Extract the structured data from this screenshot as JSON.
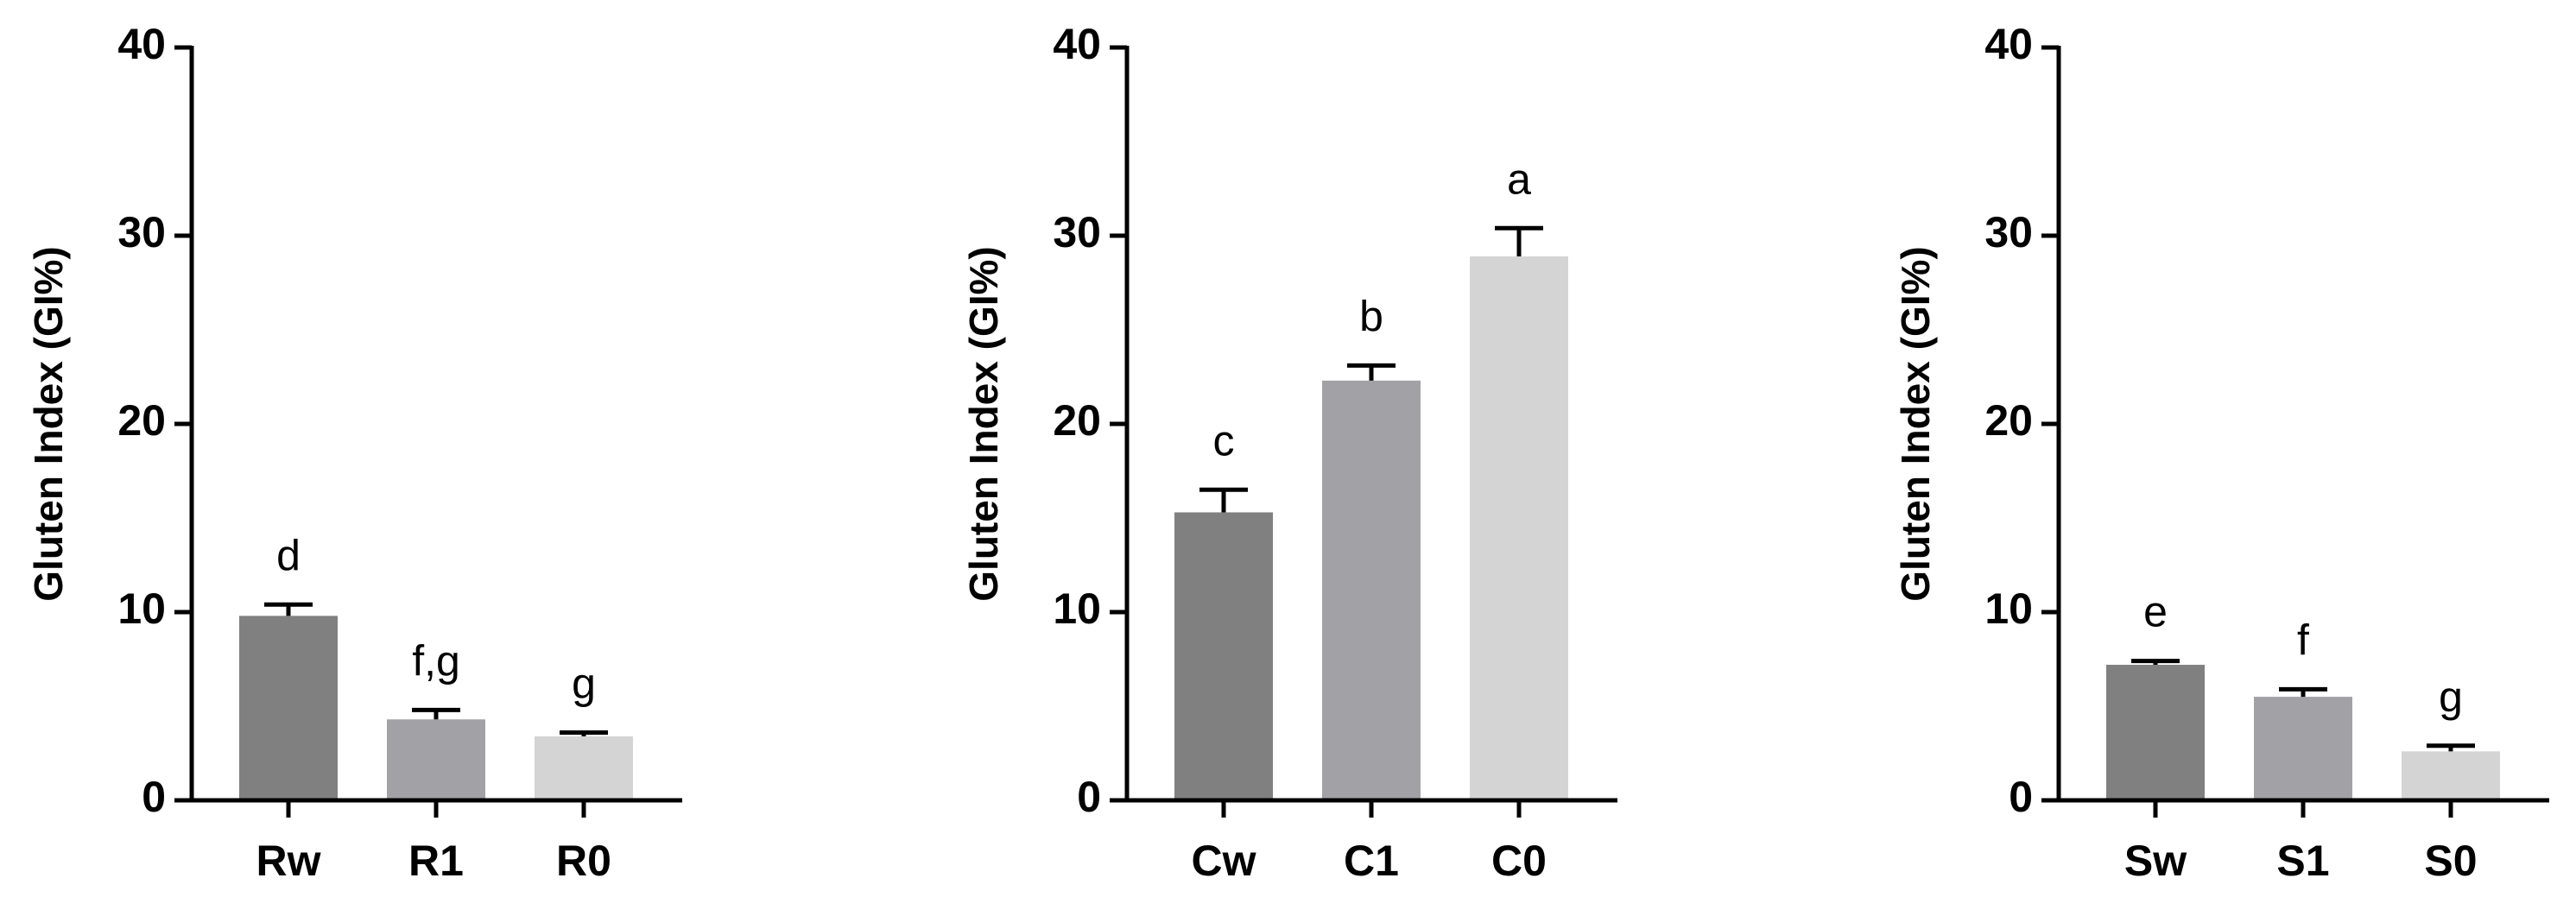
{
  "chart_data": [
    {
      "type": "bar",
      "y_label": "Gluten Index (GI%)",
      "categories": [
        "Rw",
        "R1",
        "R0"
      ],
      "values": [
        9.8,
        4.3,
        3.4
      ],
      "errors": [
        0.6,
        0.5,
        0.2
      ],
      "letters": [
        "d",
        "f,g",
        "g"
      ],
      "colors": [
        "#808080",
        "#a2a1a6",
        "#d4d4d4"
      ],
      "ylim": [
        0,
        40
      ],
      "yticks": [
        0,
        10,
        20,
        30,
        40
      ]
    },
    {
      "type": "bar",
      "y_label": "Gluten Index (GI%)",
      "categories": [
        "Cw",
        "C1",
        "C0"
      ],
      "values": [
        15.3,
        22.3,
        28.9
      ],
      "errors": [
        1.2,
        0.8,
        1.5
      ],
      "letters": [
        "c",
        "b",
        "a"
      ],
      "colors": [
        "#808080",
        "#a2a1a6",
        "#d4d4d4"
      ],
      "ylim": [
        0,
        40
      ],
      "yticks": [
        0,
        10,
        20,
        30,
        40
      ]
    },
    {
      "type": "bar",
      "y_label": "Gluten Index (GI%)",
      "categories": [
        "Sw",
        "S1",
        "S0"
      ],
      "values": [
        7.2,
        5.5,
        2.6
      ],
      "errors": [
        0.2,
        0.4,
        0.3
      ],
      "letters": [
        "e",
        "f",
        "g"
      ],
      "colors": [
        "#808080",
        "#a2a1a6",
        "#d4d4d4"
      ],
      "ylim": [
        0,
        40
      ],
      "yticks": [
        0,
        10,
        20,
        30,
        40
      ]
    }
  ]
}
